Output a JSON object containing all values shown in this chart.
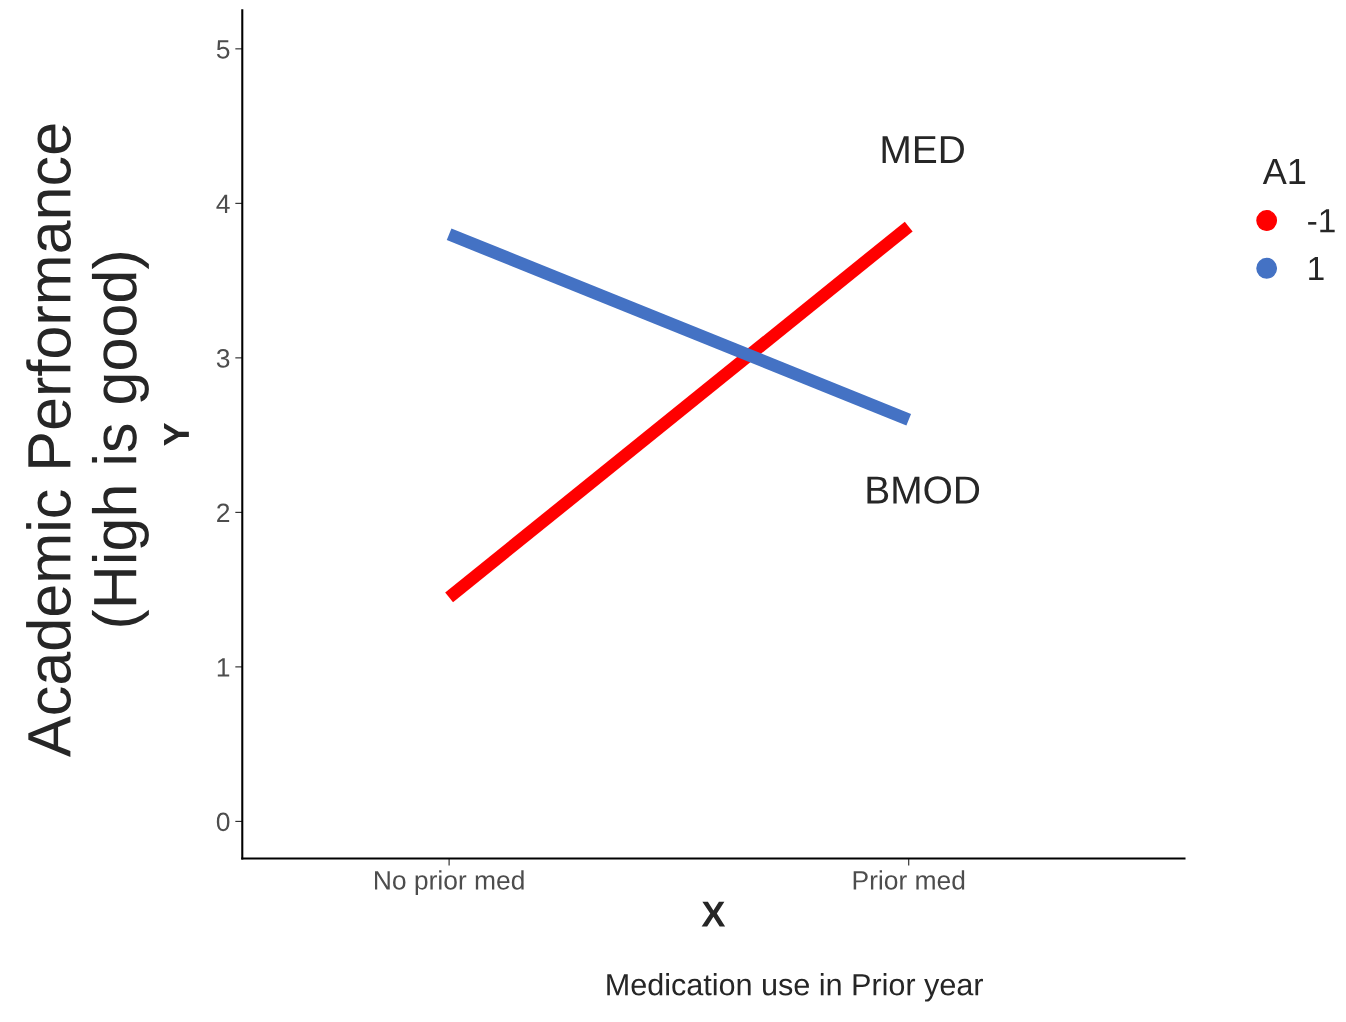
{
  "chart_data": {
    "type": "line",
    "xlabel": "X",
    "ylabel": "Y",
    "legend_title": "A1",
    "categories": [
      "No prior med",
      "Prior med"
    ],
    "series": [
      {
        "name": "-1",
        "color": "#ff0000",
        "values": [
          1.45,
          3.85
        ]
      },
      {
        "name": "1",
        "color": "#4472c4",
        "values": [
          3.8,
          2.6
        ]
      }
    ],
    "ylim": [
      -0.24,
      5.25
    ],
    "yticks": [
      0,
      1,
      2,
      3,
      4,
      5
    ],
    "annotations": [
      "Academic Performance\n(High is good)",
      "Medication use in Prior year",
      "MED",
      "BMOD"
    ],
    "grid": false,
    "legend": "right",
    "line_style": "solid",
    "marker": "none"
  }
}
